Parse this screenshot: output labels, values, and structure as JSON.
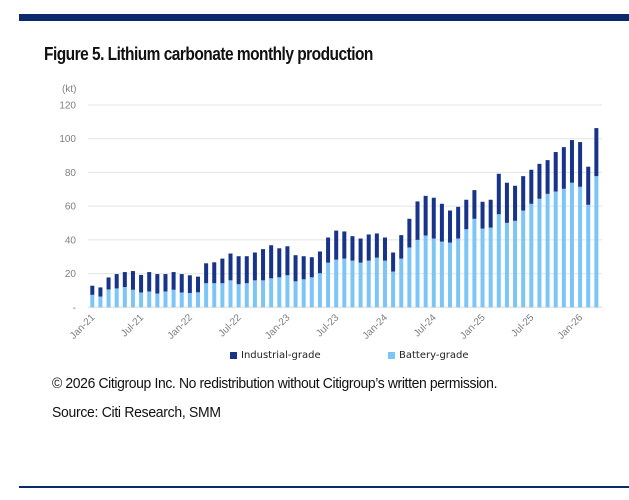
{
  "figure": {
    "title": "Figure 5. Lithium carbonate monthly production",
    "copyright": "© 2026 Citigroup Inc. No redistribution without Citigroup’s written permission.",
    "source": "Source: Citi Research, SMM",
    "accent_color": "#0b2a6b"
  },
  "chart_data": {
    "type": "bar",
    "stacked": true,
    "title": "Figure 5. Lithium carbonate monthly production",
    "xlabel": "",
    "ylabel": "(kt)",
    "ylim": [
      0,
      120
    ],
    "yticks": [
      0,
      20,
      40,
      60,
      80,
      100,
      120
    ],
    "ytick_labels": [
      "-",
      "20",
      "40",
      "60",
      "80",
      "100",
      "120"
    ],
    "grid": true,
    "legend_position": "bottom",
    "categories": [
      "Jan-21",
      "Feb-21",
      "Mar-21",
      "Apr-21",
      "May-21",
      "Jun-21",
      "Jul-21",
      "Aug-21",
      "Sep-21",
      "Oct-21",
      "Nov-21",
      "Dec-21",
      "Jan-22",
      "Feb-22",
      "Mar-22",
      "Apr-22",
      "May-22",
      "Jun-22",
      "Jul-22",
      "Aug-22",
      "Sep-22",
      "Oct-22",
      "Nov-22",
      "Dec-22",
      "Jan-23",
      "Feb-23",
      "Mar-23",
      "Apr-23",
      "May-23",
      "Jun-23",
      "Jul-23",
      "Aug-23",
      "Sep-23",
      "Oct-23",
      "Nov-23",
      "Dec-23",
      "Jan-24",
      "Feb-24",
      "Mar-24",
      "Apr-24",
      "May-24",
      "Jun-24",
      "Jul-24",
      "Aug-24",
      "Sep-24",
      "Oct-24",
      "Nov-24",
      "Dec-24",
      "Jan-25",
      "Feb-25",
      "Mar-25",
      "Apr-25",
      "May-25",
      "Jun-25",
      "Jul-25",
      "Aug-25",
      "Sep-25",
      "Oct-25",
      "Nov-25",
      "Dec-25",
      "Jan-26",
      "Feb-26",
      "Mar-26"
    ],
    "xtick_labels": [
      "Jan-21",
      "Jul-21",
      "Jan-22",
      "Jul-22",
      "Jan-23",
      "Jul-23",
      "Jan-24",
      "Jul-24",
      "Jan-25",
      "Jul-25",
      "Jan-26"
    ],
    "series": [
      {
        "name": "Battery-grade",
        "color": "#7cc5f7",
        "values": [
          7.4,
          6.4,
          10.6,
          11.2,
          12.0,
          10.4,
          8.8,
          9.4,
          8.2,
          9.4,
          10.4,
          8.8,
          8.5,
          8.9,
          14.3,
          14.3,
          14.3,
          16.0,
          13.7,
          14.3,
          16.0,
          16.0,
          17.2,
          17.8,
          19.0,
          15.4,
          16.6,
          17.8,
          20.2,
          26.5,
          28.3,
          28.9,
          27.7,
          26.5,
          27.7,
          29.5,
          27.7,
          21.2,
          28.9,
          35.5,
          40.0,
          42.6,
          40.8,
          39.0,
          38.4,
          40.8,
          46.3,
          52.5,
          46.7,
          47.3,
          55.2,
          50.1,
          51.3,
          57.4,
          61.4,
          64.4,
          67.3,
          68.7,
          70.3,
          73.9,
          71.5,
          60.8,
          77.8
        ]
      },
      {
        "name": "Industrial-grade",
        "color": "#17338a",
        "values": [
          5.4,
          5.4,
          7.1,
          8.5,
          8.9,
          11.1,
          10.4,
          11.5,
          11.5,
          10.3,
          10.5,
          10.9,
          10.5,
          9.3,
          11.8,
          12.4,
          14.6,
          15.9,
          16.6,
          16.0,
          16.5,
          18.5,
          19.6,
          17.2,
          17.2,
          15.5,
          13.7,
          11.9,
          12.9,
          14.9,
          17.2,
          16.1,
          14.5,
          14.3,
          15.5,
          14.3,
          13.7,
          11.3,
          13.9,
          17.0,
          22.8,
          23.5,
          24.2,
          22.4,
          19.0,
          18.8,
          17.5,
          17.0,
          15.9,
          16.5,
          24.0,
          23.8,
          20.8,
          20.4,
          20.2,
          20.7,
          20.0,
          23.4,
          24.7,
          25.3,
          26.5,
          22.6,
          28.5
        ]
      }
    ],
    "legend": [
      {
        "name": "Industrial-grade",
        "color": "#17338a"
      },
      {
        "name": "Battery-grade",
        "color": "#7cc5f7"
      }
    ]
  }
}
